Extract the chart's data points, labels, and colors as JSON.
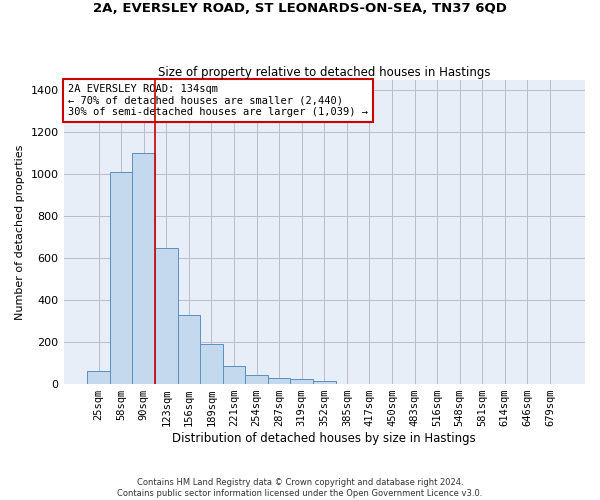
{
  "title1": "2A, EVERSLEY ROAD, ST LEONARDS-ON-SEA, TN37 6QD",
  "title2": "Size of property relative to detached houses in Hastings",
  "xlabel": "Distribution of detached houses by size in Hastings",
  "ylabel": "Number of detached properties",
  "bar_color": "#c5d9ee",
  "bar_edge_color": "#5a8fc0",
  "bins": [
    "25sqm",
    "58sqm",
    "90sqm",
    "123sqm",
    "156sqm",
    "189sqm",
    "221sqm",
    "254sqm",
    "287sqm",
    "319sqm",
    "352sqm",
    "385sqm",
    "417sqm",
    "450sqm",
    "483sqm",
    "516sqm",
    "548sqm",
    "581sqm",
    "614sqm",
    "646sqm",
    "679sqm"
  ],
  "values": [
    60,
    1010,
    1100,
    650,
    330,
    190,
    85,
    45,
    30,
    25,
    15,
    0,
    0,
    0,
    0,
    0,
    0,
    0,
    0,
    0,
    0
  ],
  "annotation_line1": "2A EVERSLEY ROAD: 134sqm",
  "annotation_line2": "← 70% of detached houses are smaller (2,440)",
  "annotation_line3": "30% of semi-detached houses are larger (1,039) →",
  "annotation_box_color": "white",
  "annotation_box_edge": "#cc0000",
  "vline_color": "#cc0000",
  "vline_x_bin": 3,
  "ylim": [
    0,
    1450
  ],
  "yticks": [
    0,
    200,
    400,
    600,
    800,
    1000,
    1200,
    1400
  ],
  "grid_color": "#bbbbcc",
  "bg_color": "#e8eef8",
  "footnote1": "Contains HM Land Registry data © Crown copyright and database right 2024.",
  "footnote2": "Contains public sector information licensed under the Open Government Licence v3.0."
}
